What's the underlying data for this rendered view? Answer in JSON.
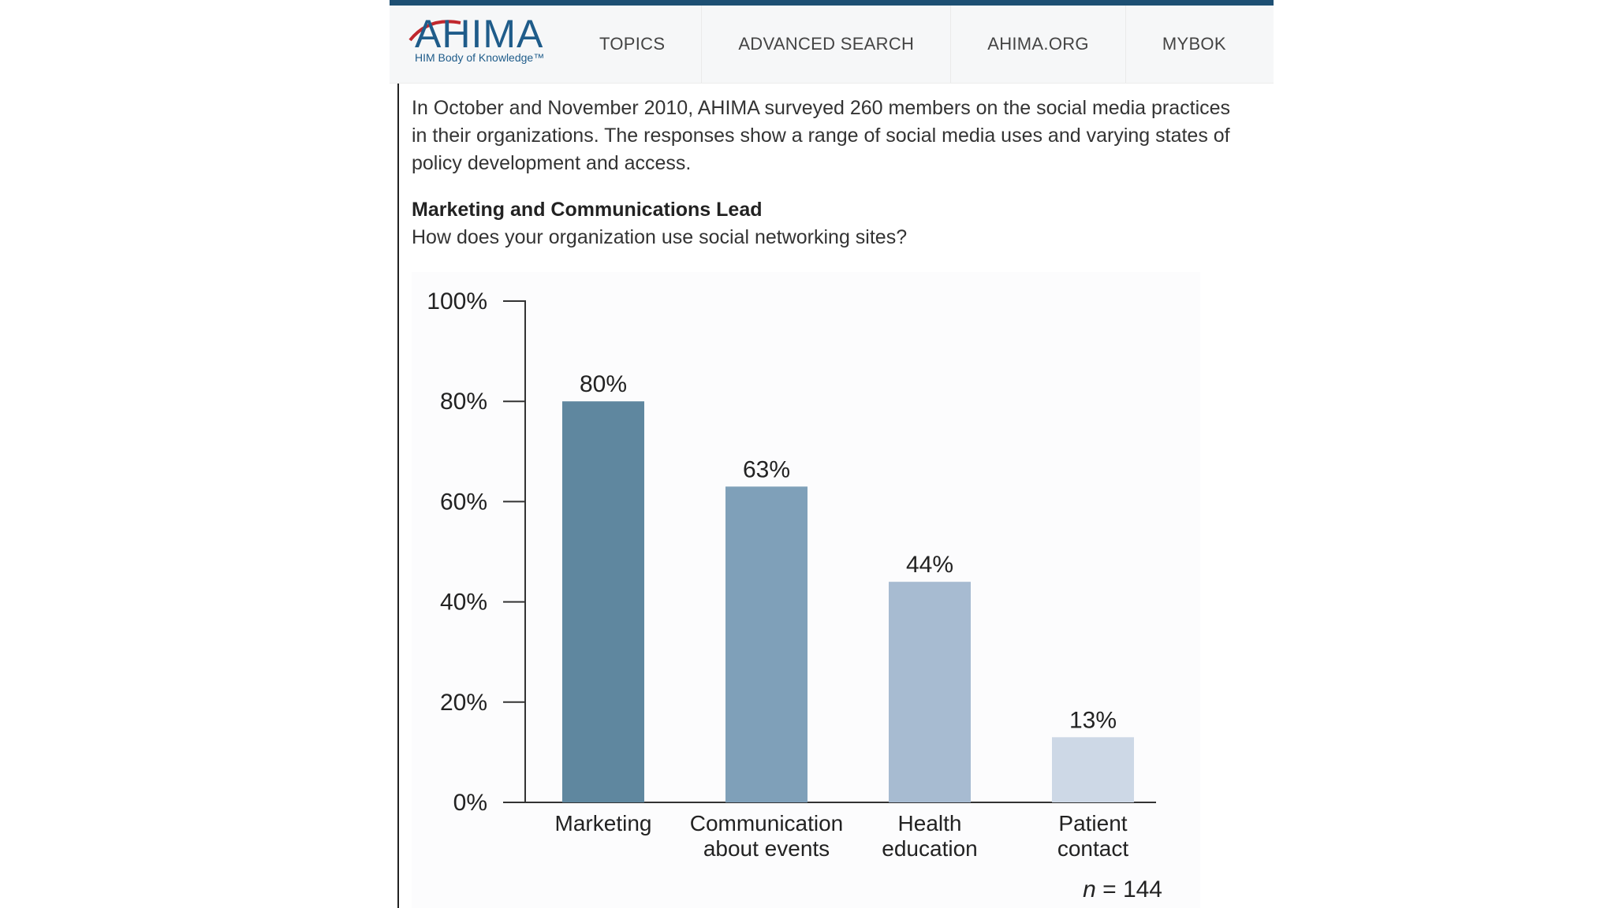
{
  "header": {
    "logo_text": "AHIMA",
    "logo_tagline": "HIM Body of Knowledge™",
    "nav": [
      "TOPICS",
      "ADVANCED SEARCH",
      "AHIMA.ORG",
      "MYBOK"
    ]
  },
  "article": {
    "intro": "In October and November 2010, AHIMA surveyed 260 members on the social media practices in their organizations. The responses show a range of social media uses and varying states of policy development and access.",
    "section_title": "Marketing and Communications Lead",
    "question": "How does your organization use social networking sites?"
  },
  "colors": {
    "accent": "#1d4f73",
    "bars": [
      "#5f879f",
      "#7fa0b9",
      "#a7bbd1",
      "#cdd8e6"
    ]
  },
  "chart_data": {
    "type": "bar",
    "categories": [
      [
        "Marketing"
      ],
      [
        "Communication",
        "about events"
      ],
      [
        "Health",
        "education"
      ],
      [
        "Patient",
        "contact"
      ]
    ],
    "values": [
      80,
      63,
      44,
      13
    ],
    "value_labels": [
      "80%",
      "63%",
      "44%",
      "13%"
    ],
    "yticks": [
      "0%",
      "20%",
      "40%",
      "60%",
      "80%",
      "100%"
    ],
    "ylim": [
      0,
      100
    ],
    "n_label_prefix": "n",
    "n_label_suffix": " = 144"
  }
}
